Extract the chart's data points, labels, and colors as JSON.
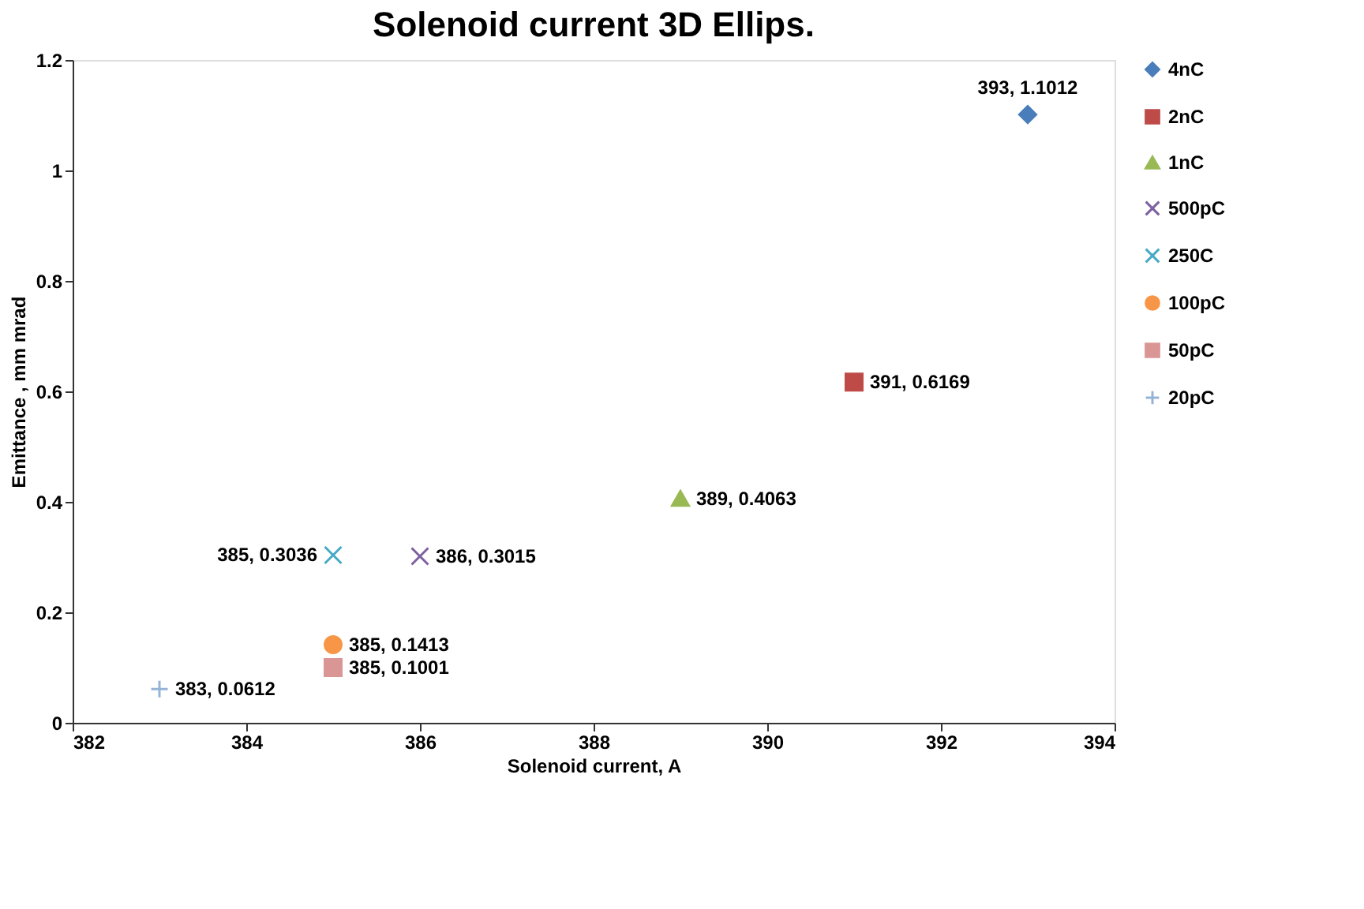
{
  "chart_data": {
    "type": "scatter",
    "title": "Solenoid current 3D Ellips.",
    "xlabel": "Solenoid current, A",
    "ylabel": "Emittance , mm mrad",
    "xlim": [
      382,
      394
    ],
    "xticks": [
      382,
      384,
      386,
      388,
      390,
      392,
      394
    ],
    "ylim": [
      0,
      1.2
    ],
    "yticks": [
      0,
      0.2,
      0.4,
      0.6,
      0.8,
      1,
      1.2
    ],
    "grid": false,
    "legend": "right",
    "series": [
      {
        "name": "4nC",
        "color": "#4a7ebb",
        "marker": "diamond",
        "x": [
          393
        ],
        "values": [
          1.1012
        ],
        "value_labels": [
          "393, 1.1012"
        ]
      },
      {
        "name": "2nC",
        "color": "#be4b48",
        "marker": "square",
        "x": [
          391
        ],
        "values": [
          0.6169
        ],
        "value_labels": [
          "391, 0.6169"
        ]
      },
      {
        "name": "1nC",
        "color": "#98b954",
        "marker": "triangle",
        "x": [
          389
        ],
        "values": [
          0.4063
        ],
        "value_labels": [
          "389, 0.4063"
        ]
      },
      {
        "name": "500pC",
        "color": "#7d60a0",
        "marker": "cross",
        "x": [
          386
        ],
        "values": [
          0.3015
        ],
        "value_labels": [
          "386, 0.3015"
        ]
      },
      {
        "name": "250C",
        "color": "#46aac5",
        "marker": "cross",
        "x": [
          385
        ],
        "values": [
          0.3036
        ],
        "value_labels": [
          "385, 0.3036"
        ]
      },
      {
        "name": "100pC",
        "color": "#f79646",
        "marker": "circle",
        "x": [
          385
        ],
        "values": [
          0.1413
        ],
        "value_labels": [
          "385, 0.1413"
        ]
      },
      {
        "name": "50pC",
        "color": "#d99694",
        "marker": "square",
        "x": [
          385
        ],
        "values": [
          0.1001
        ],
        "value_labels": [
          "385, 0.1001"
        ]
      },
      {
        "name": "20pC",
        "color": "#95b3d7",
        "marker": "plus",
        "x": [
          383
        ],
        "values": [
          0.0612
        ],
        "value_labels": [
          "383, 0.0612"
        ]
      }
    ]
  }
}
